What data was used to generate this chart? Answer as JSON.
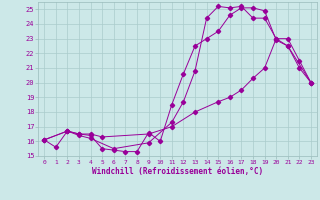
{
  "xlabel": "Windchill (Refroidissement éolien,°C)",
  "bg_color": "#cce8e8",
  "line_color": "#990099",
  "grid_color": "#aacccc",
  "xlim": [
    -0.5,
    23.5
  ],
  "ylim": [
    15,
    25.5
  ],
  "yticks": [
    15,
    16,
    17,
    18,
    19,
    20,
    21,
    22,
    23,
    24,
    25
  ],
  "xticks": [
    0,
    1,
    2,
    3,
    4,
    5,
    6,
    7,
    8,
    9,
    10,
    11,
    12,
    13,
    14,
    15,
    16,
    17,
    18,
    19,
    20,
    21,
    22,
    23
  ],
  "line1_x": [
    0,
    1,
    2,
    3,
    4,
    5,
    6,
    7,
    8,
    9,
    10,
    11,
    12,
    13,
    14,
    15,
    16,
    17,
    18,
    19,
    20,
    21,
    22,
    23
  ],
  "line1_y": [
    16.1,
    15.6,
    16.7,
    16.5,
    16.4,
    15.5,
    15.4,
    15.3,
    15.3,
    16.6,
    16.0,
    18.5,
    20.6,
    22.5,
    23.0,
    23.5,
    24.6,
    25.1,
    25.1,
    24.9,
    22.9,
    22.5,
    21.0,
    20.0
  ],
  "line2_x": [
    0,
    2,
    3,
    4,
    5,
    9,
    11,
    13,
    15,
    16,
    17,
    18,
    19,
    20,
    21,
    23
  ],
  "line2_y": [
    16.1,
    16.7,
    16.5,
    16.5,
    16.3,
    16.5,
    17.0,
    18.0,
    18.7,
    19.0,
    19.5,
    20.3,
    21.0,
    23.0,
    22.5,
    20.0
  ],
  "line3_x": [
    0,
    2,
    3,
    4,
    6,
    9,
    11,
    12,
    13,
    14,
    15,
    16,
    17,
    18,
    19,
    20,
    21,
    22,
    23
  ],
  "line3_y": [
    16.1,
    16.7,
    16.4,
    16.2,
    15.5,
    15.9,
    17.3,
    18.7,
    20.8,
    24.4,
    25.2,
    25.1,
    25.2,
    24.4,
    24.4,
    23.0,
    23.0,
    21.5,
    20.0
  ],
  "tick_fontsize": 4.5,
  "xlabel_fontsize": 5.5,
  "marker_size": 2.2,
  "line_width": 0.7
}
